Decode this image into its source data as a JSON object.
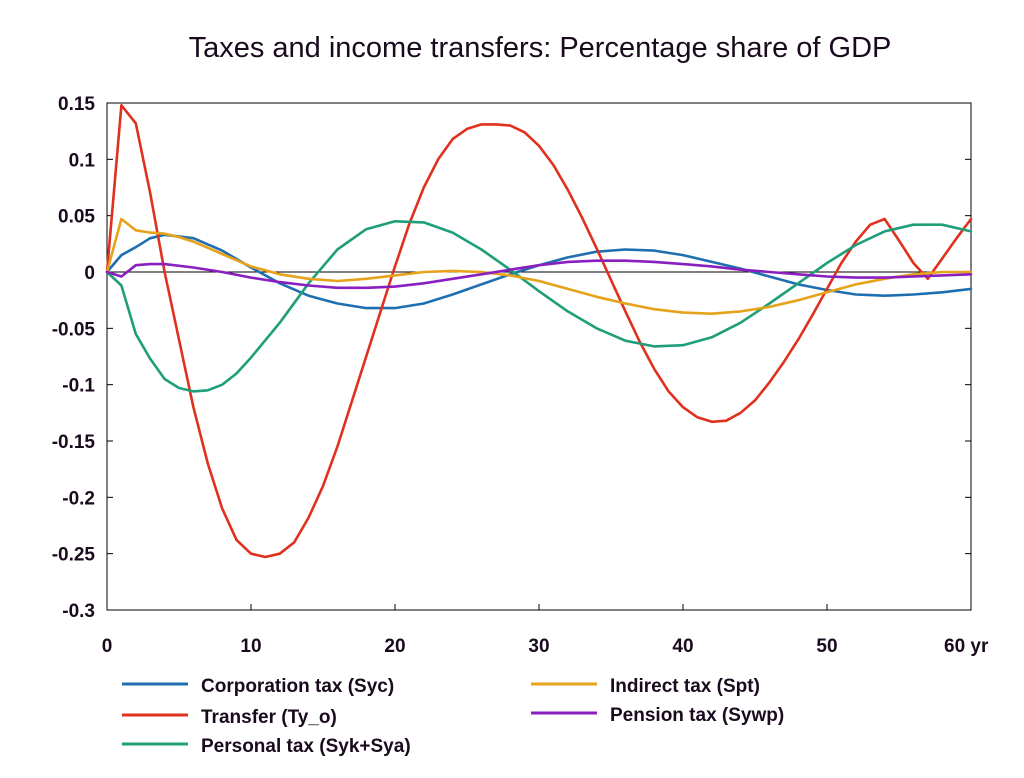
{
  "chart_data": {
    "type": "line",
    "title": "Taxes and income transfers: Percentage share of GDP",
    "xlabel": "",
    "ylabel": "",
    "x_unit_label": "yr",
    "xlim": [
      0,
      60
    ],
    "ylim": [
      -0.3,
      0.15
    ],
    "x_ticks": [
      0,
      10,
      20,
      30,
      40,
      50,
      60
    ],
    "x_tick_labels": [
      "0",
      "10",
      "20",
      "30",
      "40",
      "50",
      "60 yr"
    ],
    "y_ticks": [
      0.15,
      0.1,
      0.05,
      0,
      -0.05,
      -0.1,
      -0.15,
      -0.2,
      -0.25,
      -0.3
    ],
    "y_tick_labels": [
      "0.15",
      "0.1",
      "0.05",
      "0",
      "-0.05",
      "-0.1",
      "-0.15",
      "-0.2",
      "-0.25",
      "-0.3"
    ],
    "grid": false,
    "legend_position": "bottom",
    "series": [
      {
        "name": "Corporation tax (Syc)",
        "color": "#1f6fb0",
        "x": [
          0,
          1,
          2,
          3,
          4,
          6,
          8,
          10,
          12,
          14,
          16,
          18,
          20,
          22,
          24,
          26,
          28,
          30,
          32,
          34,
          36,
          38,
          40,
          42,
          44,
          46,
          48,
          50,
          52,
          54,
          56,
          58,
          60
        ],
        "y": [
          0,
          0.015,
          0.022,
          0.03,
          0.033,
          0.03,
          0.019,
          0.004,
          -0.01,
          -0.021,
          -0.028,
          -0.032,
          -0.032,
          -0.028,
          -0.02,
          -0.011,
          -0.002,
          0.006,
          0.013,
          0.018,
          0.02,
          0.019,
          0.015,
          0.009,
          0.003,
          -0.004,
          -0.011,
          -0.016,
          -0.02,
          -0.021,
          -0.02,
          -0.018,
          -0.015
        ]
      },
      {
        "name": "Transfer (Ty_o)",
        "color": "#e0301e",
        "x": [
          0,
          1,
          2,
          3,
          4,
          5,
          6,
          7,
          8,
          9,
          10,
          11,
          12,
          13,
          14,
          15,
          16,
          17,
          18,
          19,
          20,
          21,
          22,
          23,
          24,
          25,
          26,
          27,
          28,
          29,
          30,
          31,
          32,
          33,
          34,
          35,
          36,
          37,
          38,
          39,
          40,
          41,
          42,
          43,
          44,
          45,
          46,
          47,
          48,
          49,
          50,
          51,
          52,
          53,
          54,
          55,
          56,
          57,
          58,
          59,
          60
        ],
        "y": [
          0,
          0.148,
          0.132,
          0.07,
          0.0,
          -0.06,
          -0.12,
          -0.17,
          -0.21,
          -0.238,
          -0.25,
          -0.253,
          -0.25,
          -0.24,
          -0.218,
          -0.19,
          -0.155,
          -0.115,
          -0.075,
          -0.035,
          0.005,
          0.043,
          0.075,
          0.1,
          0.118,
          0.127,
          0.131,
          0.131,
          0.13,
          0.124,
          0.112,
          0.095,
          0.073,
          0.048,
          0.021,
          -0.007,
          -0.035,
          -0.062,
          -0.086,
          -0.106,
          -0.12,
          -0.129,
          -0.133,
          -0.132,
          -0.125,
          -0.114,
          -0.098,
          -0.08,
          -0.06,
          -0.038,
          -0.015,
          0.008,
          0.027,
          0.042,
          0.047,
          0.028,
          0.008,
          -0.006,
          0.012,
          0.03,
          0.047
        ]
      },
      {
        "name": "Personal tax (Syk+Sya)",
        "color": "#1f9e7a",
        "x": [
          0,
          1,
          2,
          3,
          4,
          5,
          6,
          7,
          8,
          9,
          10,
          12,
          14,
          16,
          18,
          20,
          22,
          24,
          26,
          28,
          30,
          32,
          34,
          36,
          38,
          40,
          42,
          44,
          46,
          48,
          50,
          52,
          54,
          56,
          58,
          60
        ],
        "y": [
          0,
          -0.012,
          -0.055,
          -0.077,
          -0.095,
          -0.103,
          -0.106,
          -0.105,
          -0.1,
          -0.09,
          -0.076,
          -0.045,
          -0.01,
          0.02,
          0.038,
          0.045,
          0.044,
          0.035,
          0.02,
          0.002,
          -0.017,
          -0.035,
          -0.05,
          -0.061,
          -0.066,
          -0.065,
          -0.058,
          -0.045,
          -0.028,
          -0.01,
          0.008,
          0.024,
          0.036,
          0.042,
          0.042,
          0.036
        ]
      },
      {
        "name": "Indirect tax (Spt)",
        "color": "#e6a21a",
        "x": [
          0,
          1,
          2,
          3,
          4,
          5,
          6,
          8,
          10,
          12,
          14,
          16,
          18,
          20,
          22,
          24,
          26,
          28,
          30,
          32,
          34,
          36,
          38,
          40,
          42,
          44,
          46,
          48,
          50,
          52,
          54,
          56,
          58,
          60
        ],
        "y": [
          0,
          0.047,
          0.037,
          0.035,
          0.034,
          0.031,
          0.027,
          0.016,
          0.005,
          -0.002,
          -0.006,
          -0.008,
          -0.006,
          -0.003,
          0.0,
          0.001,
          0.0,
          -0.003,
          -0.008,
          -0.015,
          -0.022,
          -0.028,
          -0.033,
          -0.036,
          -0.037,
          -0.035,
          -0.031,
          -0.025,
          -0.018,
          -0.011,
          -0.006,
          -0.002,
          0.0,
          0.0
        ]
      },
      {
        "name": "Pension tax (Sywp)",
        "color": "#8a1fc0",
        "x": [
          0,
          1,
          2,
          3,
          4,
          6,
          8,
          10,
          12,
          14,
          16,
          18,
          20,
          22,
          24,
          26,
          28,
          30,
          32,
          34,
          36,
          38,
          40,
          42,
          44,
          46,
          48,
          50,
          52,
          54,
          56,
          58,
          60
        ],
        "y": [
          0,
          -0.004,
          0.006,
          0.007,
          0.007,
          0.004,
          0.0,
          -0.005,
          -0.009,
          -0.012,
          -0.014,
          -0.014,
          -0.013,
          -0.01,
          -0.006,
          -0.002,
          0.002,
          0.006,
          0.009,
          0.01,
          0.01,
          0.009,
          0.007,
          0.005,
          0.002,
          0.0,
          -0.002,
          -0.004,
          -0.005,
          -0.005,
          -0.004,
          -0.003,
          -0.002
        ]
      }
    ]
  }
}
